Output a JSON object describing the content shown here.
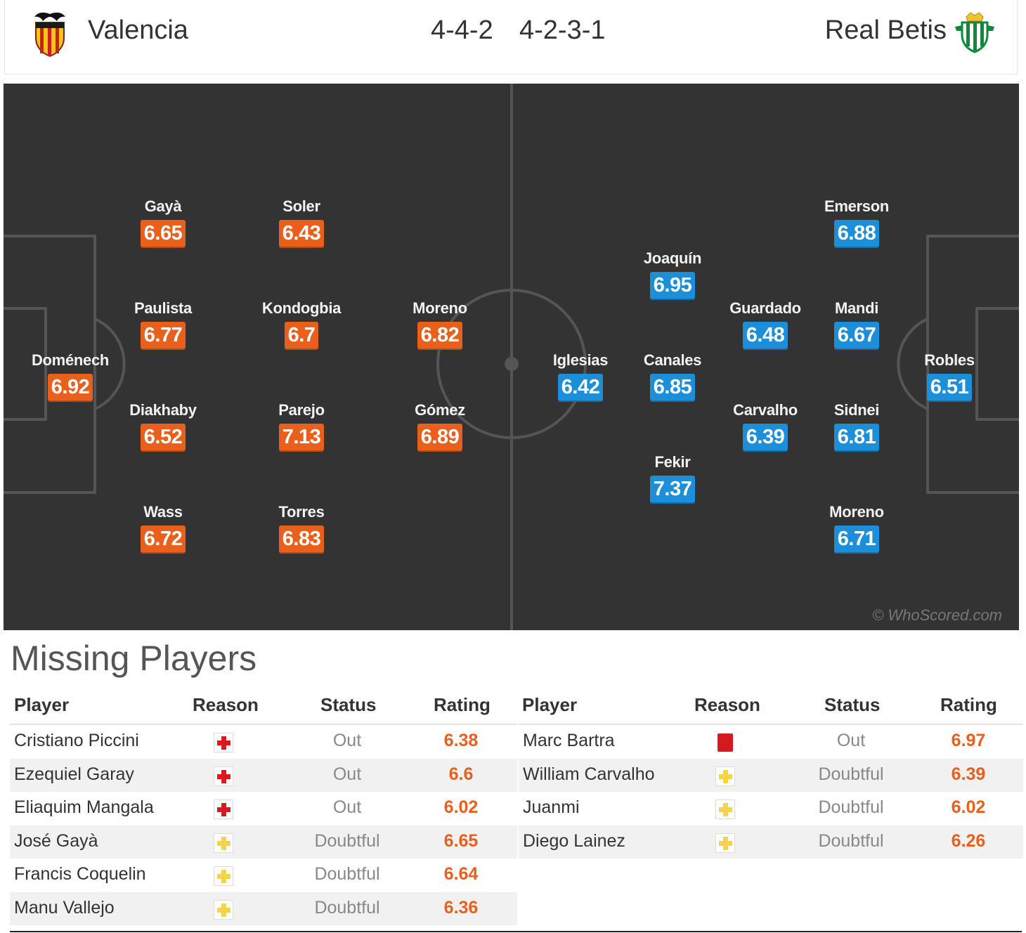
{
  "match": {
    "home": {
      "name": "Valencia",
      "formation": "4-4-2",
      "crest": "valencia-bat-crest-icon",
      "color": "#e8601c"
    },
    "away": {
      "name": "Real Betis",
      "formation": "4-2-3-1",
      "crest": "real-betis-crest-icon",
      "color": "#1d8ed8"
    }
  },
  "pitch": {
    "watermark": "© WhoScored.com",
    "home_players": [
      {
        "name": "Doménech",
        "rating": "6.92"
      },
      {
        "name": "Gayà",
        "rating": "6.65"
      },
      {
        "name": "Paulista",
        "rating": "6.77"
      },
      {
        "name": "Diakhaby",
        "rating": "6.52"
      },
      {
        "name": "Wass",
        "rating": "6.72"
      },
      {
        "name": "Soler",
        "rating": "6.43"
      },
      {
        "name": "Kondogbia",
        "rating": "6.7"
      },
      {
        "name": "Parejo",
        "rating": "7.13"
      },
      {
        "name": "Torres",
        "rating": "6.83"
      },
      {
        "name": "Moreno",
        "rating": "6.82"
      },
      {
        "name": "Gómez",
        "rating": "6.89"
      }
    ],
    "away_players": [
      {
        "name": "Robles",
        "rating": "6.51"
      },
      {
        "name": "Emerson",
        "rating": "6.88"
      },
      {
        "name": "Mandi",
        "rating": "6.67"
      },
      {
        "name": "Sidnei",
        "rating": "6.81"
      },
      {
        "name": "Moreno",
        "rating": "6.71"
      },
      {
        "name": "Guardado",
        "rating": "6.48"
      },
      {
        "name": "Carvalho",
        "rating": "6.39"
      },
      {
        "name": "Joaquín",
        "rating": "6.95"
      },
      {
        "name": "Canales",
        "rating": "6.85"
      },
      {
        "name": "Fekir",
        "rating": "7.37"
      },
      {
        "name": "Iglesias",
        "rating": "6.42"
      }
    ]
  },
  "missing": {
    "title": "Missing Players",
    "headers": {
      "player": "Player",
      "reason": "Reason",
      "status": "Status",
      "rating": "Rating"
    },
    "home": [
      {
        "player": "Cristiano Piccini",
        "reason": "injury-icon",
        "status": "Out",
        "rating": "6.38"
      },
      {
        "player": "Ezequiel Garay",
        "reason": "injury-icon",
        "status": "Out",
        "rating": "6.6"
      },
      {
        "player": "Eliaquim Mangala",
        "reason": "injury-icon",
        "status": "Out",
        "rating": "6.02"
      },
      {
        "player": "José Gayà",
        "reason": "doubtful-icon",
        "status": "Doubtful",
        "rating": "6.65"
      },
      {
        "player": "Francis Coquelin",
        "reason": "doubtful-icon",
        "status": "Doubtful",
        "rating": "6.64"
      },
      {
        "player": "Manu Vallejo",
        "reason": "doubtful-icon",
        "status": "Doubtful",
        "rating": "6.36"
      }
    ],
    "away": [
      {
        "player": "Marc Bartra",
        "reason": "red-card-icon",
        "status": "Out",
        "rating": "6.97"
      },
      {
        "player": "William Carvalho",
        "reason": "doubtful-icon",
        "status": "Doubtful",
        "rating": "6.39"
      },
      {
        "player": "Juanmi",
        "reason": "doubtful-icon",
        "status": "Doubtful",
        "rating": "6.02"
      },
      {
        "player": "Diego Lainez",
        "reason": "doubtful-icon",
        "status": "Doubtful",
        "rating": "6.26"
      }
    ]
  }
}
